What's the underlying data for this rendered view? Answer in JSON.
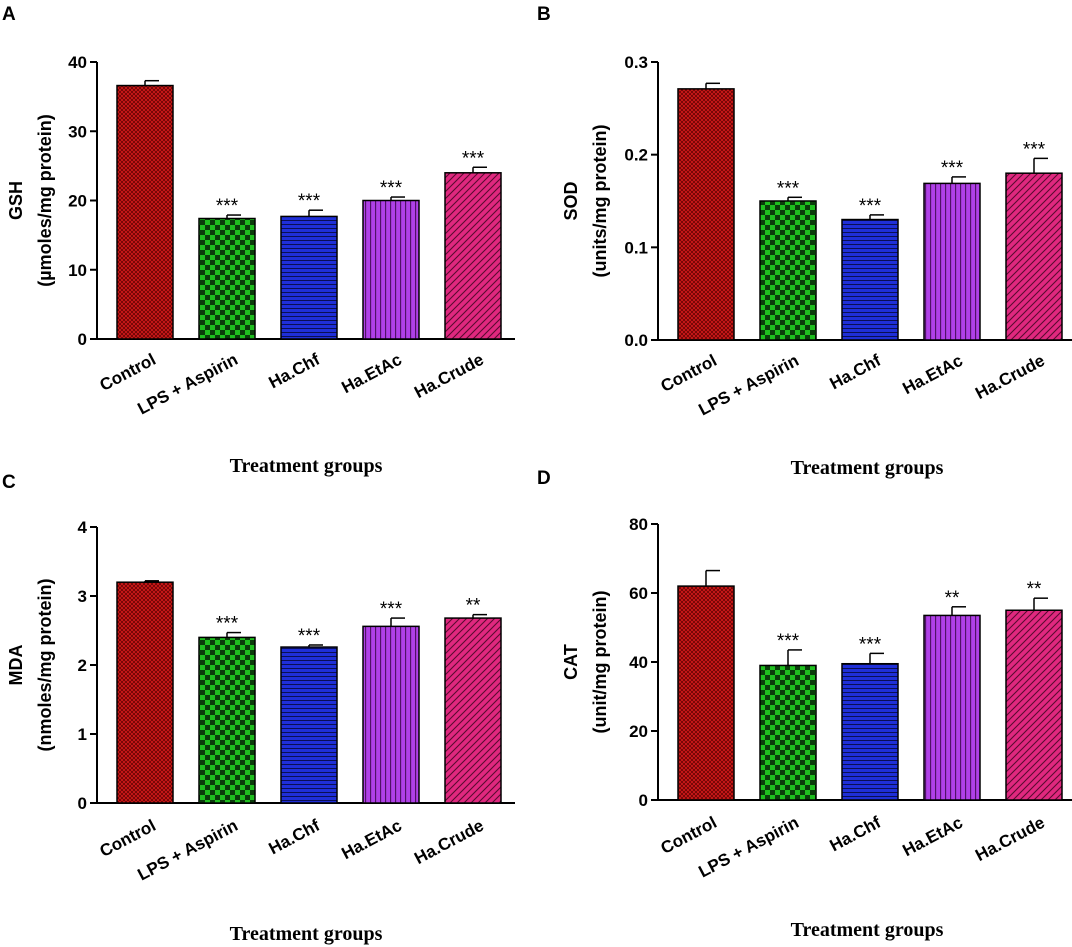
{
  "chart_data": [
    {
      "panel": "A",
      "type": "bar",
      "title": "",
      "categories": [
        "Control",
        "LPS + Aspirin",
        "Ha.Chf",
        "Ha.EtAc",
        "Ha.Crude"
      ],
      "values": [
        36.6,
        17.4,
        17.7,
        20.0,
        24.0
      ],
      "errors": [
        0.7,
        0.5,
        0.9,
        0.5,
        0.8
      ],
      "significance": [
        "",
        "***",
        "***",
        "***",
        "***"
      ],
      "ylabel_line1": "GSH",
      "ylabel_line2": "(µmoles/mg protein)",
      "xlabel": "Treatment groups",
      "ylim": [
        0,
        40
      ],
      "yticks": [
        "0",
        "10",
        "20",
        "30",
        "40"
      ]
    },
    {
      "panel": "B",
      "type": "bar",
      "title": "",
      "categories": [
        "Control",
        "LPS + Aspirin",
        "Ha.Chf",
        "Ha.EtAc",
        "Ha.Crude"
      ],
      "values": [
        0.271,
        0.15,
        0.13,
        0.169,
        0.18
      ],
      "errors": [
        0.006,
        0.004,
        0.005,
        0.007,
        0.016
      ],
      "significance": [
        "",
        "***",
        "***",
        "***",
        "***"
      ],
      "ylabel_line1": "SOD",
      "ylabel_line2": "(units/mg protein)",
      "xlabel": "Treatment groups",
      "ylim": [
        0,
        0.3
      ],
      "yticks": [
        "0.0",
        "0.1",
        "0.2",
        "0.3"
      ]
    },
    {
      "panel": "C",
      "type": "bar",
      "title": "",
      "categories": [
        "Control",
        "LPS + Aspirin",
        "Ha.Chf",
        "Ha.EtAc",
        "Ha.Crude"
      ],
      "values": [
        3.2,
        2.4,
        2.26,
        2.56,
        2.68
      ],
      "errors": [
        0.02,
        0.07,
        0.03,
        0.12,
        0.05
      ],
      "significance": [
        "",
        "***",
        "***",
        "***",
        "**"
      ],
      "ylabel_line1": "MDA",
      "ylabel_line2": "(nmoles/mg protein)",
      "xlabel": "Treatment groups",
      "ylim": [
        0,
        4
      ],
      "yticks": [
        "0",
        "1",
        "2",
        "3",
        "4"
      ]
    },
    {
      "panel": "D",
      "type": "bar",
      "title": "",
      "categories": [
        "Control",
        "LPS + Aspirin",
        "Ha.Chf",
        "Ha.EtAc",
        "Ha.Crude"
      ],
      "values": [
        62,
        39,
        39.5,
        53.5,
        55
      ],
      "errors": [
        4.5,
        4.5,
        3.0,
        2.5,
        3.5
      ],
      "significance": [
        "",
        "***",
        "***",
        "**",
        "**"
      ],
      "ylabel_line1": "CAT",
      "ylabel_line2": "(unit/mg protein)",
      "xlabel": "Treatment groups",
      "ylim": [
        0,
        80
      ],
      "yticks": [
        "0",
        "20",
        "40",
        "60",
        "80"
      ]
    }
  ],
  "bar_colors": [
    "#d11a1a",
    "#1fbf1f",
    "#1f2fd8",
    "#a526d6",
    "#e0287f"
  ],
  "bar_patterns": [
    "crosshatch-fine",
    "checker",
    "horizontal-lines",
    "vertical-lines",
    "diagonal-lines"
  ]
}
